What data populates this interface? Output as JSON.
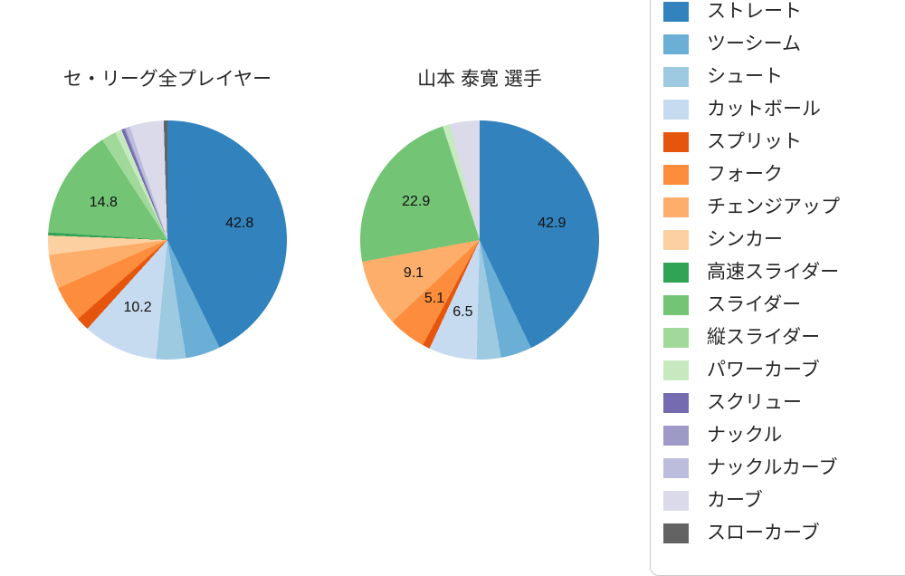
{
  "chart_data": [
    {
      "type": "pie",
      "title": "セ・リーグ全プレイヤー",
      "unit": "percent",
      "start_angle": "top",
      "direction": "clockwise",
      "label_threshold_pct": 5,
      "label_radius_ratio": 0.62,
      "categories": [
        "ストレート",
        "ツーシーム",
        "シュート",
        "カットボール",
        "スプリット",
        "フォーク",
        "チェンジアップ",
        "シンカー",
        "高速スライダー",
        "スライダー",
        "縦スライダー",
        "パワーカーブ",
        "スクリュー",
        "ナックル",
        "ナックルカーブ",
        "カーブ",
        "スローカーブ"
      ],
      "values": [
        42.8,
        4.7,
        4.0,
        10.2,
        1.8,
        4.9,
        4.6,
        2.6,
        0.4,
        14.8,
        2.0,
        0.9,
        0.4,
        0.2,
        0.6,
        4.6,
        0.5
      ],
      "labeled_segments": [
        {
          "category": "ストレート",
          "value": 42.8
        },
        {
          "category": "カットボール",
          "value": 10.2
        },
        {
          "category": "スライダー",
          "value": 14.8
        }
      ]
    },
    {
      "type": "pie",
      "title": "山本 泰寛 選手",
      "unit": "percent",
      "start_angle": "top",
      "direction": "clockwise",
      "label_threshold_pct": 5,
      "label_radius_ratio": 0.62,
      "categories": [
        "ストレート",
        "ツーシーム",
        "シュート",
        "カットボール",
        "スプリット",
        "フォーク",
        "チェンジアップ",
        "シンカー",
        "高速スライダー",
        "スライダー",
        "縦スライダー",
        "パワーカーブ",
        "スクリュー",
        "ナックル",
        "ナックルカーブ",
        "カーブ",
        "スローカーブ"
      ],
      "values": [
        42.9,
        4.2,
        3.3,
        6.5,
        1.0,
        5.1,
        9.1,
        0,
        0,
        22.9,
        0,
        1.0,
        0,
        0,
        0,
        4.0,
        0
      ],
      "labeled_segments": [
        {
          "category": "ストレート",
          "value": 42.9
        },
        {
          "category": "カットボール",
          "value": 6.5
        },
        {
          "category": "フォーク",
          "value": 5.1
        },
        {
          "category": "チェンジアップ",
          "value": 9.1
        },
        {
          "category": "スライダー",
          "value": 22.9
        }
      ]
    }
  ],
  "legend": {
    "position": "right",
    "items": [
      {
        "label": "ストレート",
        "color": "#3182bd"
      },
      {
        "label": "ツーシーム",
        "color": "#6baed6"
      },
      {
        "label": "シュート",
        "color": "#9ecae1"
      },
      {
        "label": "カットボール",
        "color": "#c6dbef"
      },
      {
        "label": "スプリット",
        "color": "#e6550d"
      },
      {
        "label": "フォーク",
        "color": "#fd8d3c"
      },
      {
        "label": "チェンジアップ",
        "color": "#fdae6b"
      },
      {
        "label": "シンカー",
        "color": "#fdd0a2"
      },
      {
        "label": "高速スライダー",
        "color": "#31a354"
      },
      {
        "label": "スライダー",
        "color": "#74c476"
      },
      {
        "label": "縦スライダー",
        "color": "#a1d99b"
      },
      {
        "label": "パワーカーブ",
        "color": "#c7e9c0"
      },
      {
        "label": "スクリュー",
        "color": "#756bb1"
      },
      {
        "label": "ナックル",
        "color": "#9e9ac8"
      },
      {
        "label": "ナックルカーブ",
        "color": "#bcbddc"
      },
      {
        "label": "カーブ",
        "color": "#dadaeb"
      },
      {
        "label": "スローカーブ",
        "color": "#636363"
      }
    ]
  }
}
